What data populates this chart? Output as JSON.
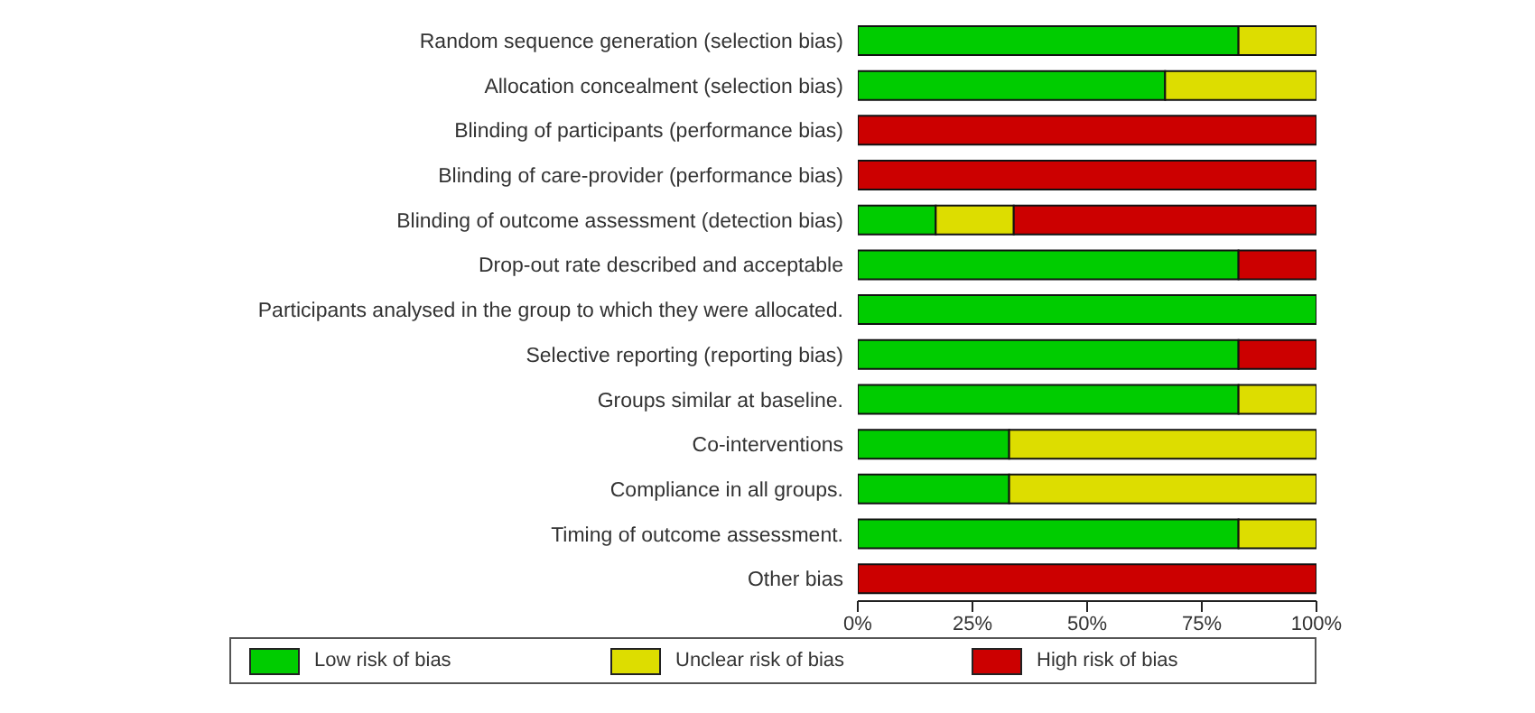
{
  "chart_data": {
    "type": "bar",
    "orientation": "horizontal",
    "stacked": true,
    "categories": [
      "Random sequence generation (selection bias)",
      "Allocation concealment (selection bias)",
      "Blinding of participants (performance bias)",
      "Blinding of care-provider (performance bias)",
      "Blinding of outcome assessment (detection bias)",
      "Drop-out rate described and acceptable",
      "Participants analysed in the group to which they were allocated.",
      "Selective reporting (reporting bias)",
      "Groups similar at baseline.",
      "Co-interventions",
      "Compliance in all groups.",
      "Timing of outcome assessment.",
      "Other bias"
    ],
    "series": [
      {
        "name": "Low risk of bias",
        "color": "#00cc00",
        "values": [
          83,
          67,
          0,
          0,
          17,
          83,
          100,
          83,
          83,
          33,
          33,
          83,
          0
        ]
      },
      {
        "name": "Unclear risk of bias",
        "color": "#dddd00",
        "values": [
          17,
          33,
          0,
          0,
          17,
          0,
          0,
          0,
          17,
          67,
          67,
          17,
          0
        ]
      },
      {
        "name": "High risk of bias",
        "color": "#cc0000",
        "values": [
          0,
          0,
          100,
          100,
          66,
          17,
          0,
          17,
          0,
          0,
          0,
          0,
          100
        ]
      }
    ],
    "xlim": [
      0,
      100
    ],
    "xticks": [
      {
        "value": 0,
        "label": "0%"
      },
      {
        "value": 25,
        "label": "25%"
      },
      {
        "value": 50,
        "label": "50%"
      },
      {
        "value": 75,
        "label": "75%"
      },
      {
        "value": 100,
        "label": "100%"
      }
    ],
    "grid": false,
    "legend": "bottom"
  }
}
